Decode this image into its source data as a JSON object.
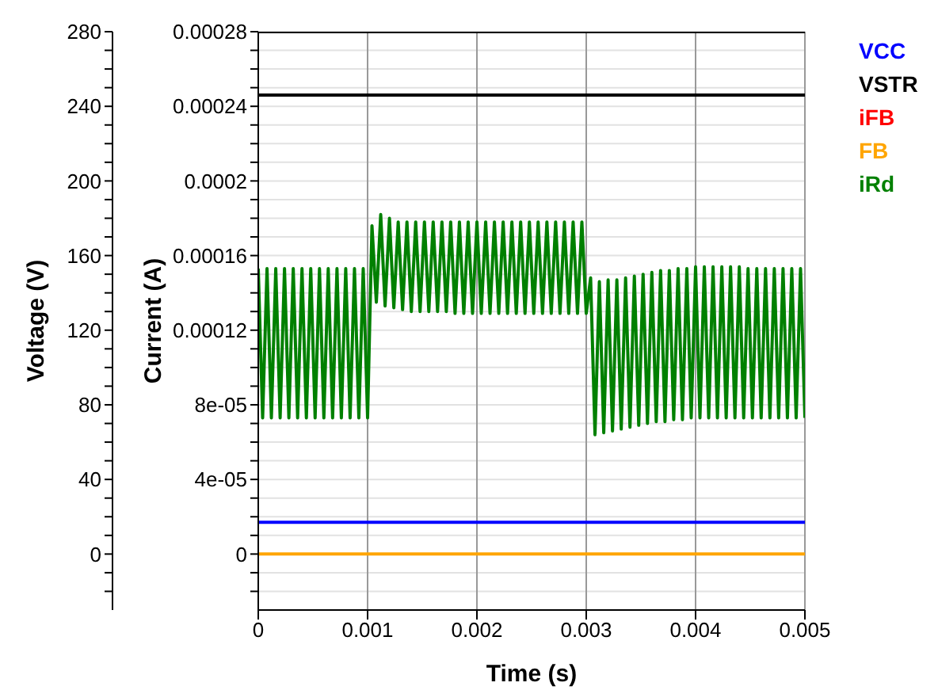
{
  "chart_data": {
    "type": "line",
    "xlabel": "Time (s)",
    "ylabel": "Voltage (V)",
    "y2label": "Current (A)",
    "x": [
      0,
      0.005
    ],
    "xlim": [
      0,
      0.005
    ],
    "xticks": [
      0,
      0.001,
      0.002,
      0.003,
      0.004,
      0.005
    ],
    "ylim": [
      -30,
      280
    ],
    "yticks": [
      {
        "value": -20,
        "label": null
      },
      {
        "value": -10,
        "label": null
      },
      0,
      {
        "value": 10,
        "label": null
      },
      {
        "value": 20,
        "label": null
      },
      {
        "value": 30,
        "label": null
      },
      40,
      {
        "value": 50,
        "label": null
      },
      {
        "value": 60,
        "label": null
      },
      {
        "value": 70,
        "label": null
      },
      80,
      {
        "value": 90,
        "label": null
      },
      {
        "value": 100,
        "label": null
      },
      {
        "value": 110,
        "label": null
      },
      120,
      {
        "value": 130,
        "label": null
      },
      {
        "value": 140,
        "label": null
      },
      {
        "value": 150,
        "label": null
      },
      160,
      {
        "value": 170,
        "label": null
      },
      {
        "value": 180,
        "label": null
      },
      {
        "value": 190,
        "label": null
      },
      200,
      {
        "value": 210,
        "label": null
      },
      {
        "value": 220,
        "label": null
      },
      {
        "value": 230,
        "label": null
      },
      240,
      {
        "value": 250,
        "label": null
      },
      {
        "value": 260,
        "label": null
      },
      {
        "value": 270,
        "label": null
      },
      280
    ],
    "y2lim": [
      -3e-05,
      0.00028
    ],
    "y2ticks": [
      {
        "value": -2e-05,
        "label": null
      },
      {
        "value": -1e-05,
        "label": null
      },
      0,
      {
        "value": 1e-05,
        "label": null
      },
      {
        "value": 2e-05,
        "label": null
      },
      {
        "value": 3e-05,
        "label": null
      },
      {
        "value": 4e-05,
        "label": "4e-05"
      },
      {
        "value": 5e-05,
        "label": null
      },
      {
        "value": 6e-05,
        "label": null
      },
      {
        "value": 7e-05,
        "label": null
      },
      {
        "value": 8e-05,
        "label": "8e-05"
      },
      {
        "value": 9e-05,
        "label": null
      },
      {
        "value": 0.0001,
        "label": null
      },
      {
        "value": 0.00011,
        "label": null
      },
      0.00012,
      {
        "value": 0.00013,
        "label": null
      },
      {
        "value": 0.00014,
        "label": null
      },
      {
        "value": 0.00015,
        "label": null
      },
      0.00016,
      {
        "value": 0.00017,
        "label": null
      },
      {
        "value": 0.00018,
        "label": null
      },
      {
        "value": 0.00019,
        "label": null
      },
      0.0002,
      {
        "value": 0.00021,
        "label": null
      },
      {
        "value": 0.00022,
        "label": null
      },
      {
        "value": 0.00023,
        "label": null
      },
      0.00024,
      {
        "value": 0.00025,
        "label": null
      },
      {
        "value": 0.00026,
        "label": null
      },
      {
        "value": 0.00027,
        "label": null
      },
      0.00028
    ],
    "grid": true,
    "legend": "top right",
    "marker": "none",
    "line_style": "solid",
    "series": [
      {
        "name": "VCC",
        "color": "#0000ff",
        "values": [
          17,
          17
        ]
      },
      {
        "name": "VSTR",
        "color": "#000000",
        "values": [
          246,
          246
        ]
      },
      {
        "name": "iFB",
        "color": "#ff0000",
        "axis": "y2",
        "values": [
          null,
          null
        ]
      },
      {
        "name": "FB",
        "color": "#ffa500",
        "values": [
          0,
          0
        ]
      },
      {
        "name": "iRd",
        "color": "#008000",
        "axis": "y2",
        "x": [
          0,
          4e-05,
          8e-05,
          0.00012,
          0.00016,
          0.0002,
          0.00024,
          0.00028,
          0.00032,
          0.00036,
          0.0004,
          0.00044,
          0.00048,
          0.00052,
          0.00056,
          0.0006,
          0.00064,
          0.00068,
          0.00072,
          0.00076,
          0.0008,
          0.00084,
          0.00088,
          0.00092,
          0.00096,
          0.001,
          0.00104,
          0.00108,
          0.00112,
          0.00116,
          0.0012,
          0.00124,
          0.00128,
          0.00132,
          0.00136,
          0.0014,
          0.00144,
          0.00148,
          0.00152,
          0.00156,
          0.0016,
          0.00164,
          0.00168,
          0.00172,
          0.00176,
          0.0018,
          0.00184,
          0.00188,
          0.00192,
          0.00196,
          0.002,
          0.00204,
          0.00208,
          0.00212,
          0.00216,
          0.0022,
          0.00224,
          0.00228,
          0.00232,
          0.00236,
          0.0024,
          0.00244,
          0.00248,
          0.00252,
          0.00256,
          0.0026,
          0.00264,
          0.00268,
          0.00272,
          0.00276,
          0.0028,
          0.00284,
          0.00288,
          0.00292,
          0.00296,
          0.003,
          0.00304,
          0.00308,
          0.00312,
          0.00316,
          0.0032,
          0.00324,
          0.00328,
          0.00332,
          0.00336,
          0.0034,
          0.00344,
          0.00348,
          0.00352,
          0.00356,
          0.0036,
          0.00364,
          0.00368,
          0.00372,
          0.00376,
          0.0038,
          0.00384,
          0.00388,
          0.00392,
          0.00396,
          0.004,
          0.00404,
          0.00408,
          0.00412,
          0.00416,
          0.0042,
          0.00424,
          0.00428,
          0.00432,
          0.00436,
          0.0044,
          0.00444,
          0.00448,
          0.00452,
          0.00456,
          0.0046,
          0.00464,
          0.00468,
          0.00472,
          0.00476,
          0.0048,
          0.00484,
          0.00488,
          0.00492,
          0.00496,
          0.005
        ],
        "values": [
          0.000153,
          7.3e-05,
          0.000153,
          7.3e-05,
          0.000153,
          7.3e-05,
          0.000153,
          7.3e-05,
          0.000153,
          7.3e-05,
          0.000153,
          7.3e-05,
          0.000153,
          7.3e-05,
          0.000153,
          7.3e-05,
          0.000153,
          7.3e-05,
          0.000153,
          7.3e-05,
          0.000153,
          7.3e-05,
          0.000153,
          7.3e-05,
          0.000153,
          7.3e-05,
          0.000176,
          0.000135,
          0.000182,
          0.000133,
          0.00018,
          0.000132,
          0.000178,
          0.000131,
          0.000178,
          0.00013,
          0.000178,
          0.00013,
          0.000178,
          0.00013,
          0.000178,
          0.00013,
          0.000178,
          0.00013,
          0.000178,
          0.000129,
          0.000178,
          0.000129,
          0.000178,
          0.000129,
          0.000178,
          0.000129,
          0.000178,
          0.000129,
          0.000178,
          0.000129,
          0.000178,
          0.000129,
          0.000178,
          0.000129,
          0.000178,
          0.000129,
          0.000178,
          0.000129,
          0.000178,
          0.000129,
          0.000178,
          0.000129,
          0.000178,
          0.000129,
          0.000178,
          0.000129,
          0.000178,
          0.000129,
          0.000178,
          0.000129,
          0.000148,
          6.4e-05,
          0.000146,
          6.5e-05,
          0.000147,
          6.6e-05,
          0.000147,
          6.7e-05,
          0.000148,
          6.8e-05,
          0.000149,
          6.9e-05,
          0.00015,
          7e-05,
          0.000151,
          7.1e-05,
          0.000152,
          7.1e-05,
          0.000152,
          7.2e-05,
          0.000153,
          7.2e-05,
          0.000153,
          7.3e-05,
          0.000154,
          7.3e-05,
          0.000154,
          7.3e-05,
          0.000154,
          7.3e-05,
          0.000154,
          7.3e-05,
          0.000154,
          7.3e-05,
          0.000154,
          7.3e-05,
          0.000153,
          7.3e-05,
          0.000153,
          7.3e-05,
          0.000153,
          7.3e-05,
          0.000153,
          7.3e-05,
          0.000153,
          7.3e-05,
          0.000153,
          7.3e-05,
          0.000153,
          7.3e-05
        ]
      }
    ]
  }
}
